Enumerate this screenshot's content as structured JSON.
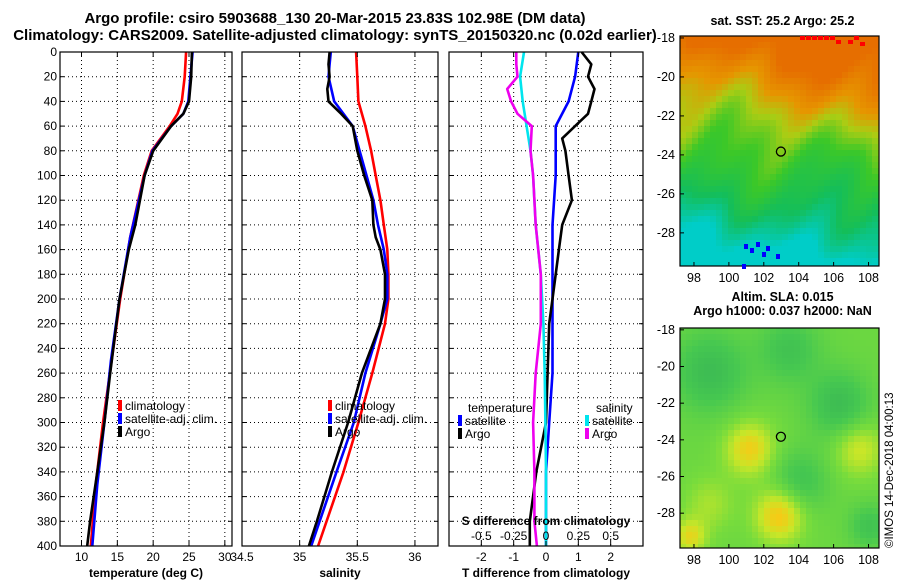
{
  "header": {
    "line1": "Argo profile: csiro 5903688_130 20-Mar-2015 23.83S 102.98E (DM data)",
    "line2": "Climatology: CARS2009. Satellite-adjusted climatology: synTS_20150320.nc (0.02d earlier)"
  },
  "colors": {
    "climatology": "#ff0000",
    "satellite_adj": "#0000ff",
    "argo": "#000000",
    "sat_salinity": "#00e5ee",
    "argo_salinity": "#ee00ee"
  },
  "chart_data": [
    {
      "type": "line",
      "panel": "temperature",
      "xlabel": "temperature (deg C)",
      "ylabel": "depth",
      "xlim": [
        7,
        31
      ],
      "ylim": [
        400,
        0
      ],
      "xticks": [
        "10",
        "15",
        "20",
        "25",
        "30"
      ],
      "yticks": [
        "0",
        "20",
        "40",
        "60",
        "80",
        "100",
        "120",
        "140",
        "160",
        "180",
        "200",
        "220",
        "240",
        "260",
        "280",
        "300",
        "320",
        "340",
        "360",
        "380",
        "400"
      ],
      "legend": [
        "climatology",
        "satellite-adj. clim.",
        "Argo"
      ],
      "series": [
        {
          "name": "climatology",
          "depth": [
            0,
            20,
            40,
            50,
            60,
            80,
            100,
            150,
            200,
            250,
            300,
            350,
            400
          ],
          "values": [
            24.6,
            24.4,
            24.0,
            23.4,
            22.3,
            19.8,
            18.7,
            16.8,
            15.4,
            14.2,
            13.0,
            12.0,
            11.3
          ]
        },
        {
          "name": "satellite-adj. clim.",
          "depth": [
            0,
            20,
            40,
            50,
            60,
            80,
            100,
            150,
            200,
            250,
            300,
            350,
            400
          ],
          "values": [
            25.5,
            25.2,
            24.9,
            24.2,
            22.5,
            19.9,
            18.8,
            16.8,
            15.3,
            14.1,
            13.2,
            12.2,
            11.5
          ]
        },
        {
          "name": "Argo",
          "depth": [
            0,
            20,
            40,
            50,
            60,
            80,
            100,
            140,
            160,
            200,
            260,
            300,
            340,
            380,
            400
          ],
          "values": [
            25.4,
            25.3,
            25.0,
            24.2,
            22.5,
            20.0,
            18.8,
            17.5,
            16.6,
            15.3,
            14.0,
            13.2,
            12.2,
            11.2,
            10.8
          ]
        }
      ]
    },
    {
      "type": "line",
      "panel": "salinity",
      "xlabel": "salinity",
      "ylabel": "depth",
      "xlim": [
        34.5,
        36.2
      ],
      "ylim": [
        400,
        0
      ],
      "xticks": [
        "34.5",
        "35",
        "35.5",
        "36"
      ],
      "legend": [
        "climatology",
        "satellite-adj. clim.",
        "Argo"
      ],
      "series": [
        {
          "name": "climatology",
          "depth": [
            0,
            20,
            40,
            60,
            80,
            100,
            120,
            140,
            160,
            180,
            200,
            220,
            260,
            300,
            340,
            400
          ],
          "values": [
            35.49,
            35.5,
            35.51,
            35.57,
            35.62,
            35.66,
            35.7,
            35.73,
            35.76,
            35.77,
            35.77,
            35.74,
            35.63,
            35.51,
            35.38,
            35.16
          ]
        },
        {
          "name": "satellite-adj. clim.",
          "depth": [
            0,
            10,
            20,
            40,
            60,
            80,
            100,
            120,
            140,
            160,
            180,
            200,
            220,
            260,
            300,
            340,
            400
          ],
          "values": [
            35.27,
            35.26,
            35.25,
            35.3,
            35.46,
            35.52,
            35.58,
            35.64,
            35.68,
            35.73,
            35.76,
            35.76,
            35.7,
            35.57,
            35.47,
            35.32,
            35.1
          ]
        },
        {
          "name": "Argo",
          "depth": [
            0,
            10,
            20,
            30,
            40,
            50,
            60,
            80,
            100,
            120,
            140,
            150,
            160,
            180,
            200,
            220,
            260,
            300,
            340,
            380,
            400
          ],
          "values": [
            35.26,
            35.25,
            35.26,
            35.24,
            35.25,
            35.36,
            35.46,
            35.5,
            35.56,
            35.63,
            35.64,
            35.66,
            35.7,
            35.74,
            35.74,
            35.7,
            35.54,
            35.42,
            35.28,
            35.15,
            35.08
          ]
        }
      ]
    },
    {
      "type": "line",
      "panel": "difference",
      "xlabel": "T difference from climatology",
      "x2label": "S difference from climatology",
      "xlim": [
        -3,
        3
      ],
      "ylim": [
        400,
        0
      ],
      "xticks": [
        "-2",
        "-1",
        "0",
        "1",
        "2"
      ],
      "x2ticks": [
        "-0.5",
        "-0.25",
        "0",
        "0.25",
        "0.5"
      ],
      "legend_temperature_title": "temperature",
      "legend_salinity_title": "salinity",
      "legend": [
        "satellite",
        "Argo",
        "satellite",
        "Argo"
      ],
      "series": [
        {
          "name": "T satellite",
          "quantity": "temperature",
          "depth": [
            0,
            20,
            40,
            60,
            80,
            100,
            140,
            200,
            260,
            300,
            340,
            380,
            400
          ],
          "values": [
            1.0,
            0.9,
            0.7,
            0.3,
            0.3,
            0.3,
            0.2,
            0.2,
            0.2,
            0.1,
            0.0,
            0.0,
            0.0
          ]
        },
        {
          "name": "T Argo",
          "quantity": "temperature",
          "depth": [
            0,
            10,
            20,
            30,
            40,
            50,
            60,
            70,
            80,
            100,
            120,
            140,
            160,
            180,
            200,
            220,
            260,
            300,
            340,
            380,
            400
          ],
          "values": [
            1.1,
            1.4,
            1.3,
            1.5,
            1.4,
            1.3,
            0.9,
            0.5,
            0.6,
            0.7,
            0.8,
            0.5,
            0.4,
            0.3,
            0.2,
            0.1,
            0.05,
            0.0,
            -0.3,
            -0.5,
            -0.5
          ]
        },
        {
          "name": "S satellite",
          "quantity": "salinity",
          "depth": [
            0,
            20,
            40,
            60,
            80,
            100,
            140,
            180,
            220,
            260,
            300,
            340,
            400
          ],
          "values": [
            -0.17,
            -0.2,
            -0.18,
            -0.15,
            -0.12,
            -0.1,
            -0.08,
            -0.04,
            -0.02,
            -0.01,
            -0.005,
            0.0,
            0.0
          ]
        },
        {
          "name": "S Argo",
          "quantity": "salinity",
          "depth": [
            0,
            10,
            20,
            30,
            40,
            50,
            60,
            80,
            100,
            140,
            180,
            220,
            260,
            300,
            340,
            380,
            400
          ],
          "values": [
            -0.23,
            -0.23,
            -0.22,
            -0.3,
            -0.27,
            -0.22,
            -0.11,
            -0.12,
            -0.1,
            -0.08,
            -0.04,
            -0.04,
            -0.08,
            -0.1,
            -0.09,
            -0.09,
            -0.07
          ]
        }
      ]
    }
  ],
  "maps": {
    "sst": {
      "title": "sat. SST: 25.2  Argo: 25.2",
      "xticks": [
        "98",
        "100",
        "102",
        "104",
        "106",
        "108"
      ],
      "yticks": [
        "-18",
        "-20",
        "-22",
        "-24",
        "-26",
        "-28"
      ]
    },
    "sla": {
      "title_line1": "Altim. SLA: 0.015",
      "title_line2": "Argo h1000: 0.037 h2000: NaN",
      "xticks": [
        "98",
        "100",
        "102",
        "104",
        "106",
        "108"
      ],
      "yticks": [
        "-18",
        "-20",
        "-22",
        "-24",
        "-26",
        "-28"
      ]
    },
    "profile_location": {
      "lon": 102.98,
      "lat": -23.83
    }
  },
  "credit": "©IMOS 14-Dec-2018 04:00:13"
}
